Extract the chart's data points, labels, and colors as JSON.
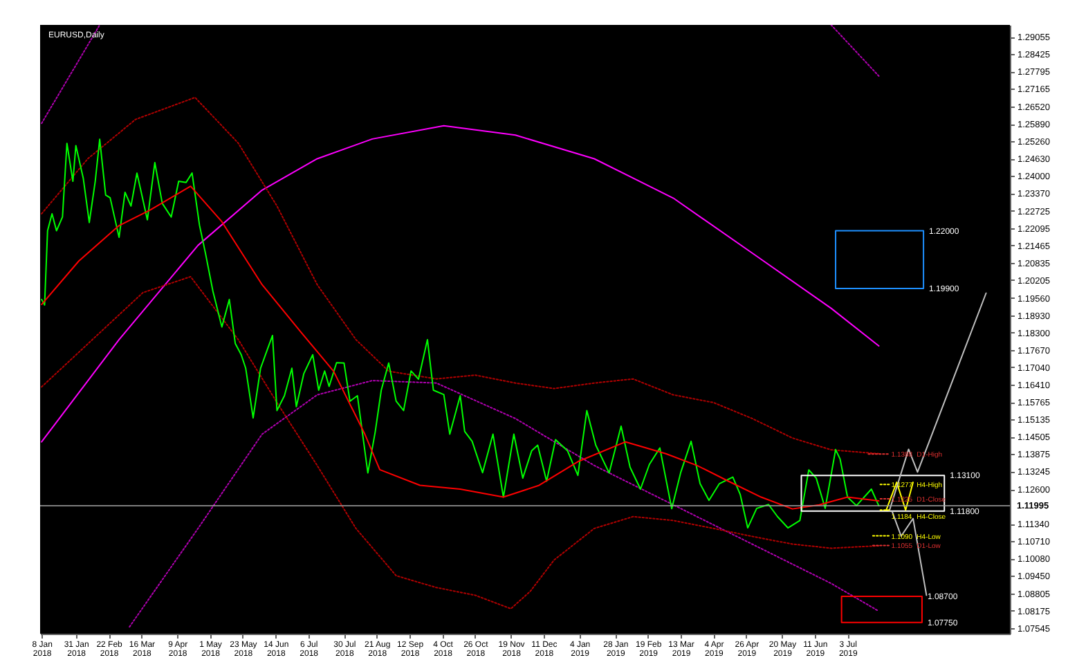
{
  "chart_data": {
    "type": "line",
    "title": "EURUSD,Daily",
    "xlim": [
      "2018-01-07",
      "2019-10-20"
    ],
    "xticks": [
      {
        "value": "2018-01-08",
        "label": "8 Jan 2018"
      },
      {
        "value": "2018-01-31",
        "label": "31 Jan 2018"
      },
      {
        "value": "2018-02-22",
        "label": "22 Feb 2018"
      },
      {
        "value": "2018-03-16",
        "label": "16 Mar 2018"
      },
      {
        "value": "2018-04-09",
        "label": "9 Apr 2018"
      },
      {
        "value": "2018-05-01",
        "label": "1 May 2018"
      },
      {
        "value": "2018-05-23",
        "label": "23 May 2018"
      },
      {
        "value": "2018-06-14",
        "label": "14 Jun 2018"
      },
      {
        "value": "2018-07-06",
        "label": "6 Jul 2018"
      },
      {
        "value": "2018-07-30",
        "label": "30 Jul 2018"
      },
      {
        "value": "2018-08-21",
        "label": "21 Aug 2018"
      },
      {
        "value": "2018-09-12",
        "label": "12 Sep 2018"
      },
      {
        "value": "2018-10-04",
        "label": "4 Oct 2018"
      },
      {
        "value": "2018-10-26",
        "label": "26 Oct 2018"
      },
      {
        "value": "2018-11-19",
        "label": "19 Nov 2018"
      },
      {
        "value": "2018-12-11",
        "label": "11 Dec 2018"
      },
      {
        "value": "2019-01-04",
        "label": "4 Jan 2019"
      },
      {
        "value": "2019-01-28",
        "label": "28 Jan 2019"
      },
      {
        "value": "2019-02-19",
        "label": "19 Feb 2019"
      },
      {
        "value": "2019-03-13",
        "label": "13 Mar 2019"
      },
      {
        "value": "2019-04-04",
        "label": "4 Apr 2019"
      },
      {
        "value": "2019-04-26",
        "label": "26 Apr 2019"
      },
      {
        "value": "2019-05-20",
        "label": "20 May 2019"
      },
      {
        "value": "2019-06-11",
        "label": "11 Jun 2019"
      },
      {
        "value": "2019-07-03",
        "label": "3 Jul 2019"
      }
    ],
    "ylim": [
      1.0734,
      1.2949
    ],
    "yticks": [
      1.07545,
      1.08175,
      1.08805,
      {
        "value": 1.0945,
        "label": "1.09450"
      },
      {
        "value": 1.1008,
        "label": "1.10080"
      },
      {
        "value": 1.1071,
        "label": "1.10710"
      },
      {
        "value": 1.1134,
        "label": "1.11340"
      },
      {
        "value": 1.126,
        "label": "1.12600"
      },
      1.13245,
      1.13875,
      1.14505,
      1.15135,
      1.15765,
      {
        "value": 1.1641,
        "label": "1.16410"
      },
      {
        "value": 1.1704,
        "label": "1.17040"
      },
      {
        "value": 1.1767,
        "label": "1.17670"
      },
      {
        "value": 1.183,
        "label": "1.18300"
      },
      {
        "value": 1.1893,
        "label": "1.18930"
      },
      {
        "value": 1.1956,
        "label": "1.19560"
      },
      1.20205,
      1.20835,
      1.21465,
      1.22095,
      1.22725,
      {
        "value": 1.2337,
        "label": "1.23370"
      },
      {
        "value": 1.24,
        "label": "1.24000"
      },
      {
        "value": 1.2463,
        "label": "1.24630"
      },
      {
        "value": 1.2526,
        "label": "1.25260"
      },
      {
        "value": 1.2589,
        "label": "1.25890"
      },
      {
        "value": 1.2652,
        "label": "1.26520"
      },
      1.27165,
      1.27795,
      1.28425,
      1.29055
    ],
    "series": [
      {
        "color": "#b000b0",
        "line_style": "dotted",
        "x": [
          "2018-01-08",
          "2018-02-16"
        ],
        "values": [
          1.2591,
          1.2949
        ]
      },
      {
        "color": "#b000b0",
        "line_style": "dotted",
        "x": [
          "2019-06-22",
          "2019-07-24"
        ],
        "values": [
          1.2949,
          1.2763
        ]
      },
      {
        "color": "#b000b0",
        "line_style": "dotted",
        "x": [
          "2018-03-08",
          "2018-04-23",
          "2018-06-05",
          "2018-07-12",
          "2018-08-18",
          "2018-09-30",
          "2018-11-22",
          "2019-01-14",
          "2019-03-08",
          "2019-04-30",
          "2019-06-22",
          "2019-07-24"
        ],
        "values": [
          1.0759,
          1.1117,
          1.146,
          1.1603,
          1.1655,
          1.1646,
          1.1517,
          1.1346,
          1.1203,
          1.106,
          1.0917,
          1.0816
        ]
      },
      {
        "color": "#ff00ff",
        "x": [
          "2018-01-08",
          "2018-03-01",
          "2018-04-23",
          "2018-06-05",
          "2018-07-12",
          "2018-08-18",
          "2018-10-05",
          "2018-11-22",
          "2019-01-14",
          "2019-03-08",
          "2019-04-30",
          "2019-06-22",
          "2019-07-24"
        ],
        "values": [
          1.1432,
          1.1804,
          1.2147,
          1.2348,
          1.2462,
          1.2534,
          1.2582,
          1.2548,
          1.2462,
          1.2319,
          1.2119,
          1.1918,
          1.1781
        ]
      },
      {
        "color": "#b00000",
        "line_style": "dotted",
        "x": [
          "2018-01-08",
          "2018-02-08",
          "2018-03-12",
          "2018-04-21",
          "2018-05-20",
          "2018-06-15",
          "2018-07-12",
          "2018-08-07",
          "2018-08-29",
          "2018-09-30",
          "2018-10-26",
          "2018-11-22",
          "2018-12-18",
          "2019-01-14",
          "2019-02-09",
          "2019-03-08",
          "2019-04-04",
          "2019-04-30",
          "2019-05-27",
          "2019-06-22",
          "2019-07-24"
        ],
        "values": [
          1.2262,
          1.2462,
          1.2605,
          1.2685,
          1.2519,
          1.229,
          1.2004,
          1.1804,
          1.1689,
          1.1661,
          1.1675,
          1.1646,
          1.1626,
          1.1646,
          1.1661,
          1.1603,
          1.1575,
          1.1517,
          1.1446,
          1.1403,
          1.1389
        ]
      },
      {
        "color": "#b00000",
        "line_style": "dotted",
        "x": [
          "2018-01-08",
          "2018-03-17",
          "2018-04-18",
          "2018-05-20",
          "2018-06-15",
          "2018-07-12",
          "2018-08-07",
          "2018-09-03",
          "2018-09-30",
          "2018-10-26",
          "2018-11-19",
          "2018-12-02",
          "2018-12-18",
          "2019-01-14",
          "2019-02-09",
          "2019-03-08",
          "2019-04-04",
          "2019-04-30",
          "2019-05-27",
          "2019-06-22",
          "2019-07-24"
        ],
        "values": [
          1.1632,
          1.1975,
          1.2033,
          1.1804,
          1.1575,
          1.1346,
          1.1117,
          1.0945,
          1.0902,
          1.0874,
          1.0825,
          1.0888,
          1.1002,
          1.1117,
          1.116,
          1.1146,
          1.1117,
          1.1088,
          1.106,
          1.1045,
          1.1054
        ]
      },
      {
        "color": "#00ff00",
        "x": [
          "2018-01-08",
          "2018-01-10",
          "2018-01-12",
          "2018-01-15",
          "2018-01-18",
          "2018-01-22",
          "2018-01-25",
          "2018-01-29",
          "2018-01-31",
          "2018-02-05",
          "2018-02-09",
          "2018-02-13",
          "2018-02-16",
          "2018-02-20",
          "2018-02-23",
          "2018-03-01",
          "2018-03-05",
          "2018-03-09",
          "2018-03-13",
          "2018-03-20",
          "2018-03-25",
          "2018-03-30",
          "2018-04-05",
          "2018-04-10",
          "2018-04-15",
          "2018-04-19",
          "2018-04-24",
          "2018-04-28",
          "2018-05-03",
          "2018-05-09",
          "2018-05-14",
          "2018-05-18",
          "2018-05-22",
          "2018-05-25",
          "2018-05-30",
          "2018-06-04",
          "2018-06-08",
          "2018-06-12",
          "2018-06-15",
          "2018-06-20",
          "2018-06-25",
          "2018-06-28",
          "2018-07-03",
          "2018-07-09",
          "2018-07-13",
          "2018-07-17",
          "2018-07-20",
          "2018-07-25",
          "2018-07-30",
          "2018-08-03",
          "2018-08-08",
          "2018-08-15",
          "2018-08-20",
          "2018-08-24",
          "2018-08-29",
          "2018-09-03",
          "2018-09-08",
          "2018-09-13",
          "2018-09-18",
          "2018-09-24",
          "2018-09-28",
          "2018-10-05",
          "2018-10-09",
          "2018-10-16",
          "2018-10-19",
          "2018-10-24",
          "2018-10-31",
          "2018-11-07",
          "2018-11-14",
          "2018-11-21",
          "2018-11-27",
          "2018-12-03",
          "2018-12-07",
          "2018-12-13",
          "2018-12-19",
          "2018-12-27",
          "2019-01-03",
          "2019-01-09",
          "2019-01-15",
          "2019-01-24",
          "2019-02-01",
          "2019-02-07",
          "2019-02-14",
          "2019-02-20",
          "2019-02-27",
          "2019-03-07",
          "2019-03-13",
          "2019-03-20",
          "2019-03-26",
          "2019-04-01",
          "2019-04-08",
          "2019-04-17",
          "2019-04-22",
          "2019-04-27",
          "2019-05-03",
          "2019-05-11",
          "2019-05-17",
          "2019-05-24",
          "2019-06-01",
          "2019-06-07",
          "2019-06-12",
          "2019-06-18",
          "2019-06-25",
          "2019-06-28",
          "2019-07-03",
          "2019-07-09",
          "2019-07-19",
          "2019-07-24"
        ],
        "values": [
          1.195,
          1.193,
          1.22,
          1.2262,
          1.22,
          1.225,
          1.2518,
          1.238,
          1.251,
          1.239,
          1.223,
          1.238,
          1.2533,
          1.233,
          1.232,
          1.2176,
          1.234,
          1.229,
          1.241,
          1.224,
          1.2448,
          1.23,
          1.225,
          1.238,
          1.2376,
          1.241,
          1.222,
          1.2118,
          1.198,
          1.185,
          1.195,
          1.179,
          1.1749,
          1.17,
          1.1519,
          1.17,
          1.176,
          1.1819,
          1.1546,
          1.16,
          1.17,
          1.156,
          1.168,
          1.1749,
          1.162,
          1.169,
          1.1634,
          1.172,
          1.1719,
          1.158,
          1.16,
          1.1319,
          1.147,
          1.162,
          1.1719,
          1.158,
          1.1546,
          1.169,
          1.166,
          1.1804,
          1.162,
          1.1604,
          1.146,
          1.16,
          1.147,
          1.1434,
          1.132,
          1.146,
          1.1231,
          1.146,
          1.13,
          1.14,
          1.142,
          1.1289,
          1.144,
          1.14,
          1.131,
          1.1546,
          1.142,
          1.1319,
          1.1489,
          1.134,
          1.126,
          1.135,
          1.141,
          1.1189,
          1.132,
          1.1434,
          1.128,
          1.1219,
          1.128,
          1.1304,
          1.124,
          1.1119,
          1.119,
          1.1204,
          1.116,
          1.1119,
          1.1146,
          1.133,
          1.13,
          1.119,
          1.1404,
          1.137,
          1.1231,
          1.12,
          1.126,
          1.11995
        ]
      },
      {
        "color": "#ff0000",
        "x": [
          "2018-01-08",
          "2018-02-02",
          "2018-03-01",
          "2018-03-22",
          "2018-04-18",
          "2018-05-09",
          "2018-06-05",
          "2018-07-01",
          "2018-07-23",
          "2018-08-13",
          "2018-08-23",
          "2018-09-19",
          "2018-10-16",
          "2018-11-14",
          "2018-12-08",
          "2019-01-03",
          "2019-02-04",
          "2019-03-03",
          "2019-03-24",
          "2019-04-14",
          "2019-05-06",
          "2019-05-27",
          "2019-06-14",
          "2019-07-03",
          "2019-07-24"
        ],
        "values": [
          1.1932,
          1.209,
          1.2219,
          1.2276,
          1.2362,
          1.2233,
          1.2004,
          1.1832,
          1.1689,
          1.146,
          1.1331,
          1.1274,
          1.126,
          1.1231,
          1.1274,
          1.136,
          1.1432,
          1.1389,
          1.1346,
          1.1289,
          1.1231,
          1.1188,
          1.1203,
          1.1231,
          1.1217
        ]
      },
      {
        "color": "#ffffff",
        "x": [
          "2019-06-02",
          "2019-09-06",
          "2019-09-06",
          "2019-06-02",
          "2019-06-02",
          "2019-09-06"
        ],
        "values": [
          1.131,
          1.131,
          1.118,
          1.118,
          1.131,
          1.131
        ]
      },
      {
        "color": "#1e90ff",
        "x": [
          "2019-06-25",
          "2019-08-23",
          "2019-08-23",
          "2019-06-25",
          "2019-06-25",
          "2019-08-23"
        ],
        "values": [
          1.22,
          1.22,
          1.199,
          1.199,
          1.22,
          1.22
        ]
      },
      {
        "color": "#ff0000",
        "x": [
          "2019-06-29",
          "2019-08-22",
          "2019-08-22",
          "2019-06-29",
          "2019-06-29",
          "2019-08-22"
        ],
        "values": [
          1.087,
          1.087,
          1.0775,
          1.0775,
          1.087,
          1.087
        ]
      },
      {
        "color": "#ffff00",
        "x": [
          "2019-07-29",
          "2019-08-05",
          "2019-08-11",
          "2019-08-16"
        ],
        "values": [
          1.1184,
          1.1285,
          1.1184,
          1.1285
        ]
      },
      {
        "color": "#c0c0c0",
        "x": [
          "2019-07-31",
          "2019-08-13",
          "2019-08-19",
          "2019-10-04"
        ],
        "values": [
          1.118,
          1.1405,
          1.1322,
          1.1973
        ]
      },
      {
        "color": "#c0c0c0",
        "x": [
          "2019-08-02",
          "2019-08-08",
          "2019-08-16",
          "2019-08-25"
        ],
        "values": [
          1.1178,
          1.1089,
          1.1153,
          1.0874
        ]
      },
      {
        "name": "D1-High",
        "color": "#e03030",
        "line_style": "dotted",
        "x": [
          "2019-07-17",
          "2019-07-31"
        ],
        "values": [
          1.1388,
          1.1388
        ],
        "value_labels": [
          null,
          "1.1388"
        ]
      },
      {
        "name": "H4-High",
        "color": "#ffff00",
        "line_style": "dotted",
        "x": [
          "2019-07-25",
          "2019-07-31"
        ],
        "values": [
          1.1277,
          1.1277
        ],
        "value_labels": [
          null,
          "1.1277"
        ]
      },
      {
        "name": "D1-Close",
        "color": "#e03030",
        "line_style": "dotted",
        "x": [
          "2019-07-25",
          "2019-07-31"
        ],
        "values": [
          1.1225,
          1.1225
        ],
        "value_labels": [
          null,
          "1.1225"
        ]
      },
      {
        "name": "H4-Close",
        "color": "#ffff00",
        "line_style": "dotted",
        "x": [
          "2019-07-25",
          "2019-07-31"
        ],
        "values": [
          1.1184,
          1.1184
        ],
        "value_labels": [
          null,
          "1.1184"
        ]
      },
      {
        "name": "H4-Low",
        "color": "#ffff00",
        "line_style": "dotted",
        "x": [
          "2019-07-20",
          "2019-07-31"
        ],
        "values": [
          1.109,
          1.109
        ],
        "value_labels": [
          null,
          "1.1090"
        ]
      },
      {
        "name": "D1-Low",
        "color": "#e03030",
        "line_style": "dotted",
        "x": [
          "2019-07-20",
          "2019-07-31"
        ],
        "values": [
          1.1055,
          1.1055
        ],
        "value_labels": [
          null,
          "1.1055"
        ]
      }
    ],
    "ref_lines": [
      {
        "axis": "y",
        "value": 1.11995,
        "label": "1.11995",
        "color": "#a9a9a9"
      }
    ],
    "annotations": [
      {
        "text": "1.22000",
        "x": "2019-08-23",
        "y": 1.22
      },
      {
        "text": "1.19900",
        "x": "2019-08-23",
        "y": 1.199
      },
      {
        "text": "1.13100",
        "x": "2019-09-06",
        "y": 1.131
      },
      {
        "text": "1.11800",
        "x": "2019-09-06",
        "y": 1.118
      },
      {
        "text": "1.08700",
        "x": "2019-08-22",
        "y": 1.087
      },
      {
        "text": "1.07750",
        "x": "2019-08-22",
        "y": 1.0775
      }
    ]
  }
}
